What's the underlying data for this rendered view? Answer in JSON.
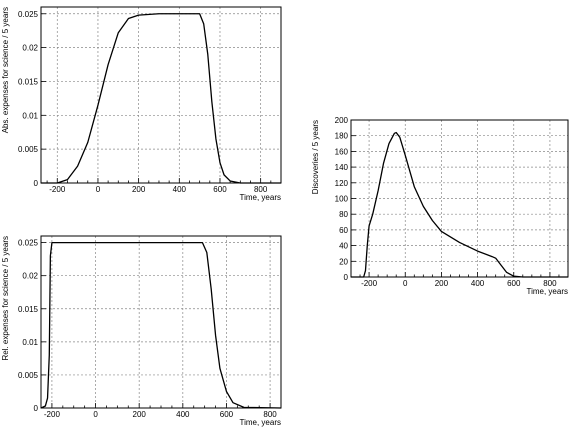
{
  "chart_data": [
    {
      "type": "line",
      "xlabel": "Time, years",
      "ylabel": "Abs. expenses for science / 5 years",
      "xlim": [
        -280,
        900
      ],
      "ylim": [
        0,
        0.026
      ],
      "x_ticks": [
        -200,
        0,
        200,
        400,
        600,
        800
      ],
      "y_ticks": [
        0,
        0.005,
        0.01,
        0.015,
        0.02,
        0.025
      ],
      "x_tick_labels": [
        "-200",
        "0",
        "200",
        "400",
        "600",
        "800"
      ],
      "y_tick_labels": [
        "0",
        "0.005",
        "0.01",
        "0.015",
        "0.02",
        "0.025"
      ],
      "grid": true,
      "x": [
        -280,
        -200,
        -150,
        -100,
        -50,
        0,
        50,
        100,
        150,
        200,
        300,
        400,
        500,
        520,
        540,
        560,
        580,
        600,
        620,
        650,
        700,
        800,
        900
      ],
      "y": [
        0,
        0,
        0.0005,
        0.0025,
        0.006,
        0.0115,
        0.0175,
        0.0222,
        0.0243,
        0.0248,
        0.025,
        0.025,
        0.025,
        0.0235,
        0.019,
        0.012,
        0.0065,
        0.003,
        0.0012,
        0.0003,
        0,
        0,
        0
      ]
    },
    {
      "type": "line",
      "xlabel": "Time, years",
      "ylabel": "Discoveries / 5 years",
      "xlim": [
        -300,
        900
      ],
      "ylim": [
        0,
        200
      ],
      "x_ticks": [
        -200,
        0,
        200,
        400,
        600,
        800
      ],
      "y_ticks": [
        0,
        20,
        40,
        60,
        80,
        100,
        120,
        140,
        160,
        180,
        200
      ],
      "x_tick_labels": [
        "-200",
        "0",
        "200",
        "400",
        "600",
        "800"
      ],
      "y_tick_labels": [
        "0",
        "20",
        "40",
        "60",
        "80",
        "100",
        "120",
        "140",
        "160",
        "180",
        "200"
      ],
      "grid": true,
      "x": [
        -300,
        -230,
        -220,
        -210,
        -200,
        -180,
        -150,
        -120,
        -90,
        -60,
        -50,
        -30,
        0,
        50,
        100,
        150,
        200,
        300,
        400,
        480,
        500,
        520,
        560,
        600,
        650,
        900
      ],
      "y": [
        0,
        0,
        8,
        40,
        65,
        80,
        110,
        145,
        170,
        183,
        184,
        178,
        155,
        115,
        90,
        72,
        58,
        44,
        33,
        26,
        24,
        18,
        6,
        1,
        0,
        0
      ]
    },
    {
      "type": "line",
      "xlabel": "Time, years",
      "ylabel": "Rel. expenses for science / 5 years",
      "xlim": [
        -250,
        850
      ],
      "ylim": [
        0,
        0.026
      ],
      "x_ticks": [
        -200,
        0,
        200,
        400,
        600,
        800
      ],
      "y_ticks": [
        0,
        0.005,
        0.01,
        0.015,
        0.02,
        0.025
      ],
      "x_tick_labels": [
        "-200",
        "0",
        "200",
        "400",
        "600",
        "800"
      ],
      "y_tick_labels": [
        "0",
        "0.005",
        "0.01",
        "0.015",
        "0.02",
        "0.025"
      ],
      "grid": true,
      "x": [
        -250,
        -230,
        -220,
        -212,
        -207,
        -200,
        0,
        200,
        400,
        490,
        510,
        530,
        550,
        570,
        600,
        630,
        680,
        850
      ],
      "y": [
        0,
        0.0003,
        0.0015,
        0.008,
        0.023,
        0.025,
        0.025,
        0.025,
        0.025,
        0.025,
        0.0235,
        0.018,
        0.011,
        0.006,
        0.0025,
        0.0008,
        0.0001,
        0
      ]
    }
  ]
}
